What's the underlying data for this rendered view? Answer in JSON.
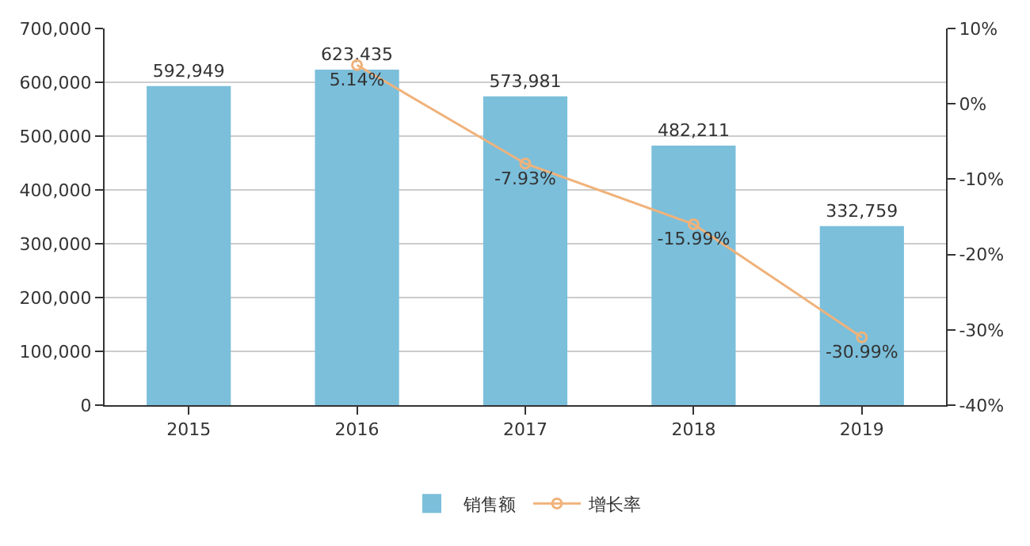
{
  "chart_data": {
    "type": "bar",
    "categories": [
      "2015",
      "2016",
      "2017",
      "2018",
      "2019"
    ],
    "series": [
      {
        "name": "销售额",
        "color": "#7bbfdb",
        "values": [
          592949,
          623435,
          573981,
          482211,
          332759
        ],
        "value_labels": [
          "592,949",
          "623,435",
          "573,981",
          "482,211",
          "332,759"
        ]
      },
      {
        "name": "增长率",
        "type": "line",
        "axis": "y2",
        "color": "#f0b27a",
        "values": [
          null,
          5.14,
          -7.93,
          -15.99,
          -30.99
        ],
        "value_labels": [
          null,
          "5.14%",
          "-7.93%",
          "-15.99%",
          "-30.99%"
        ]
      }
    ],
    "ylim": [
      0,
      700000
    ],
    "yticks": [
      0,
      {
        "value": 100000,
        "label": "100,000"
      },
      {
        "value": 200000,
        "label": "200,000"
      },
      {
        "value": 300000,
        "label": "300,000"
      },
      {
        "value": 400000,
        "label": "400,000"
      },
      {
        "value": 500000,
        "label": "500,000"
      },
      {
        "value": 600000,
        "label": "600,000"
      },
      {
        "value": 700000,
        "label": "700,000"
      }
    ],
    "y2lim": [
      -40,
      10
    ],
    "y2ticks": [
      {
        "value": -40,
        "label": "-40%"
      },
      {
        "value": -30,
        "label": "-30%"
      },
      {
        "value": -20,
        "label": "-20%"
      },
      {
        "value": -10,
        "label": "-10%"
      },
      {
        "value": 0,
        "label": "0%"
      },
      {
        "value": 10,
        "label": "10%"
      }
    ],
    "grid": "y",
    "legend": "bottom",
    "marker": "circle",
    "line_style": "solid"
  }
}
